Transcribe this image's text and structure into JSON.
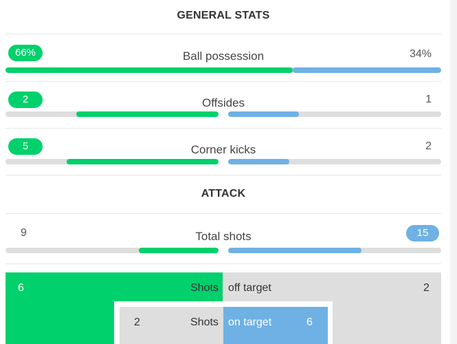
{
  "general": {
    "title": "GENERAL STATS",
    "stats": [
      {
        "label": "Ball possession",
        "home": "66%",
        "away": "34%",
        "home_pct": 66,
        "away_pct": 34
      },
      {
        "label": "Offsides",
        "home": "2",
        "away": "1",
        "home_ratio": 0.667,
        "away_ratio": 0.333
      },
      {
        "label": "Corner kicks",
        "home": "5",
        "away": "2",
        "home_ratio": 0.714,
        "away_ratio": 0.286
      }
    ]
  },
  "attack": {
    "title": "ATTACK",
    "total_shots": {
      "label": "Total shots",
      "home": "9",
      "away": "15",
      "home_ratio": 0.375,
      "away_ratio": 0.625
    },
    "shots_off": {
      "label_left": "Shots",
      "label_right": "off target",
      "home": "6",
      "away": "2"
    },
    "shots_on": {
      "label_left": "Shots",
      "label_right": "on target",
      "home": "2",
      "away": "6"
    }
  },
  "colors": {
    "home": "#00d16c",
    "away": "#6fb1e4",
    "track": "#dedede"
  }
}
